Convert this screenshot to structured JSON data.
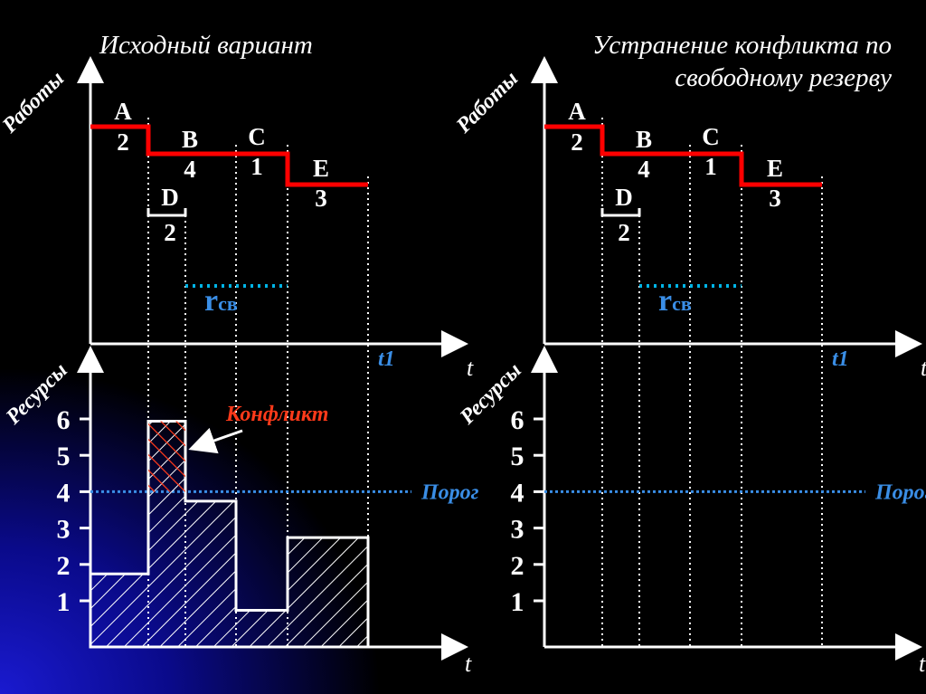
{
  "panels": [
    {
      "title_lines": [
        "Исходный вариант"
      ],
      "show_histogram": true
    },
    {
      "title_lines": [
        "Устранение конфликта по",
        "свободному резерву"
      ],
      "show_histogram": false
    }
  ],
  "top_chart": {
    "y_label": "Работы",
    "x_label": "t",
    "t1_label": "t1",
    "free_reserve_label_main": "r",
    "free_reserve_label_sub": "св",
    "tasks": [
      {
        "name": "A",
        "duration": "2"
      },
      {
        "name": "B",
        "duration": "4"
      },
      {
        "name": "C",
        "duration": "1"
      },
      {
        "name": "D",
        "duration": "2"
      },
      {
        "name": "E",
        "duration": "3"
      }
    ]
  },
  "bottom_chart": {
    "y_label": "Ресурсы",
    "x_label": "t",
    "y_ticks": [
      "1",
      "2",
      "3",
      "4",
      "5",
      "6"
    ],
    "threshold_label": "Порог",
    "threshold_value": 4,
    "conflict_label": "Конфликт",
    "resource_levels": [
      2,
      6.2,
      4,
      1,
      3
    ]
  },
  "colors": {
    "task_line": "#ff0000",
    "reserve": "#00b4e6",
    "threshold": "#3a8ee6",
    "conflict": "#ff3a1a",
    "text": "#ffffff"
  }
}
